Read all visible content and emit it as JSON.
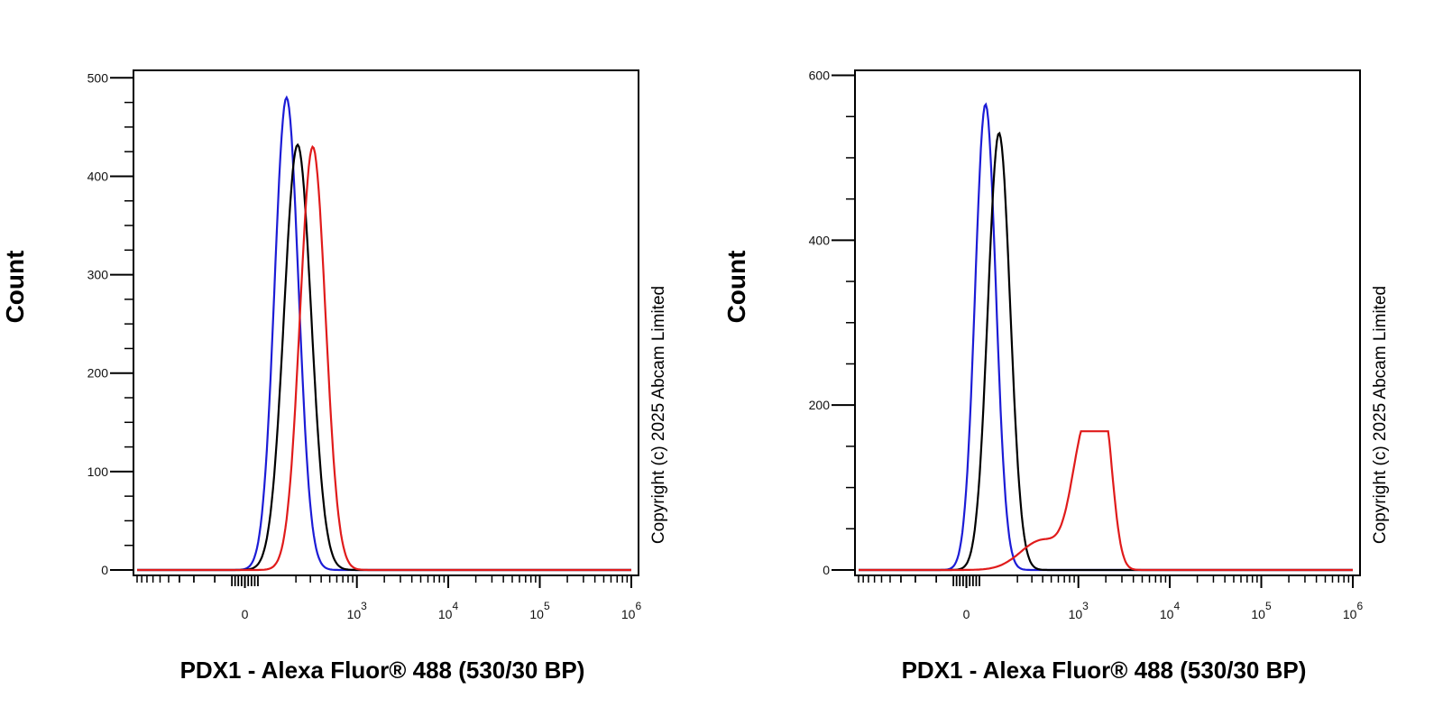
{
  "chart_data": [
    {
      "type": "line",
      "xlabel": "PDX1 - Alexa Fluor® 488 (530/30 BP)",
      "ylabel": "Count",
      "ylim": [
        0,
        500
      ],
      "y_ticks": [
        "0",
        "100",
        "200",
        "300",
        "400",
        "500"
      ],
      "x_scale": "biexponential",
      "x_ticks": [
        {
          "base": "0",
          "exp": ""
        },
        {
          "base": "10",
          "exp": "3"
        },
        {
          "base": "10",
          "exp": "4"
        },
        {
          "base": "10",
          "exp": "5"
        },
        {
          "base": "10",
          "exp": "6"
        }
      ],
      "copyright": "Copyright (c) 2025 Abcam Limited",
      "series": [
        {
          "color": "#1c1cd6",
          "peak_x": 150,
          "peak_y": 480,
          "spread": 0.3
        },
        {
          "color": "#000000",
          "peak_x": 210,
          "peak_y": 432,
          "spread": 0.34
        },
        {
          "color": "#e01b1b",
          "peak_x": 320,
          "peak_y": 430,
          "spread": 0.32
        }
      ]
    },
    {
      "type": "line",
      "xlabel": "PDX1 - Alexa Fluor® 488 (530/30 BP)",
      "ylabel": "Count",
      "ylim": [
        0,
        600
      ],
      "y_ticks": [
        "0",
        "200",
        "400",
        "600"
      ],
      "x_scale": "biexponential",
      "x_ticks": [
        {
          "base": "0",
          "exp": ""
        },
        {
          "base": "10",
          "exp": "3"
        },
        {
          "base": "10",
          "exp": "4"
        },
        {
          "base": "10",
          "exp": "5"
        },
        {
          "base": "10",
          "exp": "6"
        }
      ],
      "copyright": "Copyright (c) 2025 Abcam Limited",
      "series": [
        {
          "color": "#1c1cd6",
          "peak_x": 60,
          "peak_y": 565,
          "spread": 0.26
        },
        {
          "color": "#000000",
          "peak_x": 110,
          "peak_y": 530,
          "spread": 0.28
        },
        {
          "color": "#e01b1b",
          "peak_x": 1200,
          "peak_y": 165,
          "spread": 0.6,
          "shape": "bimodal",
          "second_peak_x": 1900,
          "second_peak_y": 150
        }
      ]
    }
  ]
}
